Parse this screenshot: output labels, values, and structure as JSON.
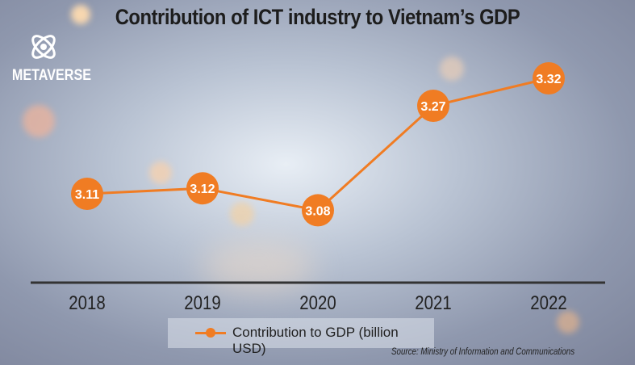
{
  "logo": {
    "text": "METAVERSE",
    "icon": "atom-icon"
  },
  "chart_data": {
    "type": "line",
    "title": "Contribution of ICT industry to Vietnam’s GDP",
    "categories": [
      "2018",
      "2019",
      "2020",
      "2021",
      "2022"
    ],
    "series": [
      {
        "name": "Contribution to GDP (billion USD)",
        "values": [
          3.11,
          3.12,
          3.08,
          3.27,
          3.32
        ],
        "color": "#f07c23"
      }
    ],
    "data_labels": [
      "3.11",
      "3.12",
      "3.08",
      "3.27",
      "3.32"
    ],
    "xlabel": "",
    "ylabel": "",
    "grid": false,
    "legend": "bottom",
    "source": "Source:  Ministry of Information and Communications"
  }
}
